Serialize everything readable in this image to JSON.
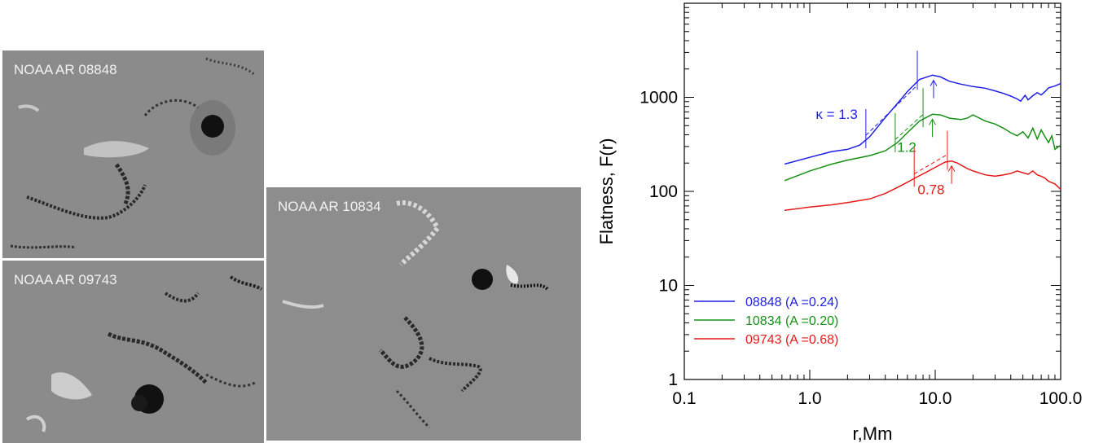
{
  "magnetograms": [
    {
      "label": "NOAA AR 08848"
    },
    {
      "label": "NOAA AR 09743"
    },
    {
      "label": "NOAA AR 10834"
    }
  ],
  "colors": {
    "blue": "#1f1fe6",
    "green": "#159015",
    "red": "#e61a1a"
  },
  "chart_data": {
    "type": "line",
    "xlabel": "r,Mm",
    "ylabel": "Flatness, F(r)",
    "xscale": "log",
    "yscale": "log",
    "xlim": [
      0.1,
      100
    ],
    "ylim": [
      1,
      10000
    ],
    "x_tick_labels": [
      "0.1",
      "1.0",
      "10.0",
      "100.0"
    ],
    "y_tick_labels": [
      "1",
      "10",
      "100",
      "1000"
    ],
    "legend_position": "bottom-left",
    "series": [
      {
        "name": "08848 (A =0.24)",
        "color": "#1f1fe6",
        "x": [
          0.63,
          1.0,
          1.5,
          2.0,
          2.5,
          3.0,
          4.0,
          5.0,
          6.0,
          7.5,
          9.5,
          11,
          13,
          16,
          20,
          25,
          30,
          35,
          40,
          45,
          48,
          52,
          55,
          60,
          65,
          70,
          75,
          80,
          90,
          100
        ],
        "y": [
          195,
          230,
          265,
          280,
          310,
          380,
          610,
          860,
          1150,
          1550,
          1720,
          1650,
          1480,
          1380,
          1300,
          1250,
          1170,
          1100,
          1030,
          960,
          910,
          1050,
          940,
          1040,
          1120,
          1060,
          1150,
          1260,
          1320,
          1400
        ]
      },
      {
        "name": "10834 (A =0.20)",
        "color": "#159015",
        "x": [
          0.63,
          1.0,
          1.5,
          2.0,
          3.0,
          4.0,
          5.0,
          6.0,
          7.5,
          9.5,
          11,
          13,
          16,
          18,
          20,
          25,
          30,
          35,
          40,
          45,
          50,
          55,
          60,
          65,
          70,
          75,
          80,
          85,
          90,
          100
        ],
        "y": [
          130,
          165,
          195,
          215,
          240,
          270,
          330,
          420,
          560,
          660,
          650,
          600,
          580,
          600,
          650,
          560,
          520,
          470,
          420,
          390,
          430,
          370,
          470,
          360,
          450,
          380,
          330,
          390,
          280,
          310
        ]
      },
      {
        "name": "09743 (A =0.68)",
        "color": "#e61a1a",
        "x": [
          0.63,
          1.0,
          1.5,
          2.0,
          3.0,
          4.0,
          5.0,
          6.0,
          7.0,
          8.5,
          10,
          12,
          13.5,
          15,
          18,
          20,
          25,
          30,
          35,
          40,
          45,
          50,
          55,
          60,
          65,
          70,
          75,
          80,
          90,
          100
        ],
        "y": [
          63,
          68,
          72,
          76,
          83,
          95,
          110,
          125,
          140,
          160,
          180,
          205,
          210,
          200,
          175,
          165,
          150,
          145,
          150,
          155,
          165,
          158,
          152,
          165,
          150,
          145,
          138,
          128,
          120,
          105
        ]
      }
    ],
    "annotations": [
      {
        "series": 0,
        "text": "κ = 1.3",
        "fit_x": [
          2.8,
          7.2
        ],
        "slope": 1.3,
        "peak_x": 9.7
      },
      {
        "series": 1,
        "text": "1.2",
        "fit_x": [
          4.8,
          8.0
        ],
        "slope": 1.2,
        "peak_x": 9.5
      },
      {
        "series": 2,
        "text": "0.78",
        "fit_x": [
          6.8,
          12.5
        ],
        "slope": 0.78,
        "peak_x": 13.5
      }
    ]
  }
}
